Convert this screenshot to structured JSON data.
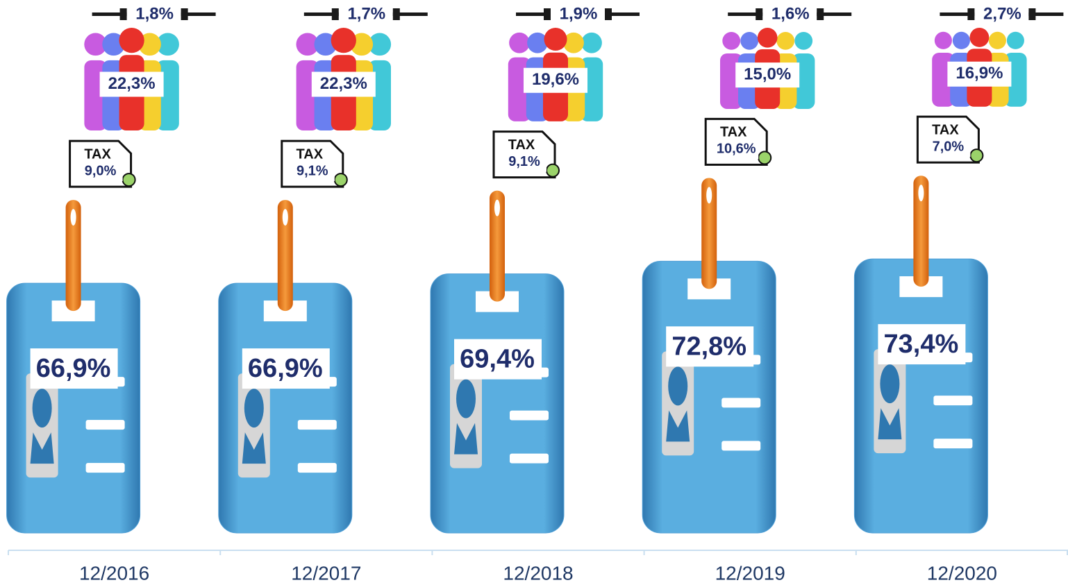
{
  "chart_data": {
    "type": "pictograph_stack",
    "categories": [
      "12/2016",
      "12/2017",
      "12/2018",
      "12/2019",
      "12/2020"
    ],
    "series": [
      {
        "color": "#4f9fd6",
        "values": [
          66.9,
          66.9,
          69.4,
          72.8,
          73.4
        ],
        "value_labels": [
          "66,9%",
          "66,9%",
          "69,4%",
          "72,8%",
          "73,4%"
        ]
      },
      {
        "color": "#ffffff",
        "values": [
          9.0,
          9.1,
          9.1,
          10.6,
          7.0
        ],
        "value_labels": [
          "9,0%",
          "9,1%",
          "9,1%",
          "10,6%",
          "7,0%"
        ]
      },
      {
        "color": "#e8312a",
        "values": [
          22.3,
          22.3,
          19.6,
          15.0,
          16.9
        ],
        "value_labels": [
          "22,3%",
          "22,3%",
          "19,6%",
          "15,0%",
          "16,9%"
        ]
      },
      {
        "color": "#1a1a1a",
        "values": [
          1.8,
          1.7,
          1.9,
          1.6,
          2.7
        ],
        "value_labels": [
          "1,8%",
          "1,7%",
          "1,9%",
          "1,6%",
          "2,7%"
        ]
      }
    ]
  }
}
